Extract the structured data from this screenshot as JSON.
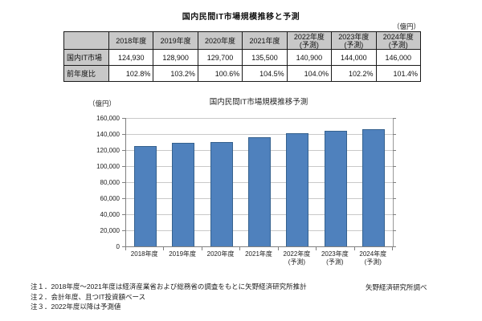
{
  "page": {
    "title": "国内民間IT市場規模推移と予測"
  },
  "table": {
    "unit_label": "（億円）",
    "corner_label": "",
    "columns": [
      "2018年度",
      "2019年度",
      "2020年度",
      "2021年度",
      "2022年度\n(予測)",
      "2023年度\n(予測)",
      "2024年度\n(予測)"
    ],
    "rows": [
      {
        "label": "国内IT市場",
        "values": [
          "124,930",
          "128,900",
          "129,700",
          "135,500",
          "140,900",
          "144,000",
          "146,000"
        ],
        "align": "center"
      },
      {
        "label": "前年度比",
        "values": [
          "102.8%",
          "103.2%",
          "100.6%",
          "104.5%",
          "104.0%",
          "102.2%",
          "101.4%"
        ],
        "align": "right"
      }
    ]
  },
  "chart_data": {
    "type": "bar",
    "title": "国内民間IT市場規模推移予測",
    "unit_label": "（億円）",
    "categories": [
      "2018年度",
      "2019年度",
      "2020年度",
      "2021年度",
      "2022年度\n(予測)",
      "2023年度\n(予測)",
      "2024年度\n(予測)"
    ],
    "values": [
      124930,
      128900,
      129700,
      135500,
      140900,
      144000,
      146000
    ],
    "xlabel": "",
    "ylabel": "（億円）",
    "ylim": [
      0,
      160000
    ],
    "ytick_step": 20000,
    "grid": true,
    "legend": "none"
  },
  "colors": {
    "bar_fill": "#4f81bd",
    "bar_border": "#35618e",
    "gridline": "#c9c9c9",
    "axis": "#808080",
    "table_header_bg": "#c8c8c8"
  },
  "footnotes": [
    "注１．2018年度～2021年度は経済産業省および総務省の調査をもとに矢野経済研究所推計",
    "注２．会計年度、且つIT投資額ベース",
    "注３．2022年度以降は予測値"
  ],
  "source_note": "矢野経済研究所調べ"
}
